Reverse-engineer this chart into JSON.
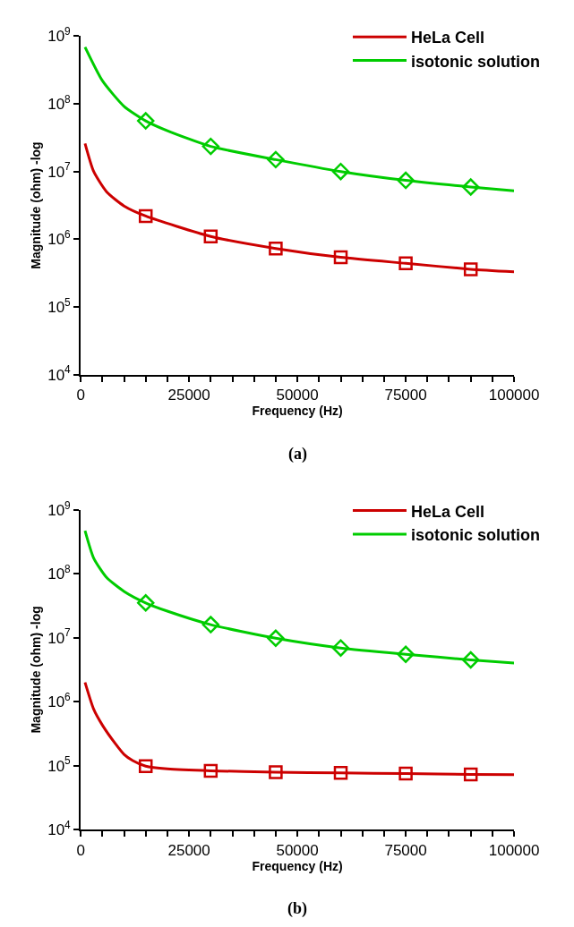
{
  "chart_data": [
    {
      "type": "line",
      "xlabel": "Frequency (Hz)",
      "ylabel": "Magnitude (ohm) -log",
      "annotations": [
        "(a)"
      ],
      "log": "y",
      "legend": "top right",
      "line_style": "solid",
      "xlim": [
        0,
        100000
      ],
      "xticks": [
        0,
        {
          "value": 5000,
          "label": null
        },
        {
          "value": 10000,
          "label": null
        },
        {
          "value": 15000,
          "label": null
        },
        {
          "value": 20000,
          "label": null
        },
        25000,
        {
          "value": 30000,
          "label": null
        },
        {
          "value": 35000,
          "label": null
        },
        {
          "value": 40000,
          "label": null
        },
        {
          "value": 45000,
          "label": null
        },
        50000,
        {
          "value": 55000,
          "label": null
        },
        {
          "value": 60000,
          "label": null
        },
        {
          "value": 65000,
          "label": null
        },
        {
          "value": 70000,
          "label": null
        },
        75000,
        {
          "value": 80000,
          "label": null
        },
        {
          "value": 85000,
          "label": null
        },
        {
          "value": 90000,
          "label": null
        },
        {
          "value": 95000,
          "label": null
        },
        100000
      ],
      "ylim": [
        10000,
        1000000000
      ],
      "yticks": [
        {
          "value": 10000,
          "label": "10$^{4}$"
        },
        {
          "value": 100000,
          "label": "10$^{5}$"
        },
        {
          "value": 1000000,
          "label": "10$^{6}$"
        },
        {
          "value": 10000000,
          "label": "10$^{7}$"
        },
        {
          "value": 100000000,
          "label": "10$^{8}$"
        },
        {
          "value": 1000000000,
          "label": "10$^{9}$"
        }
      ],
      "series": [
        {
          "name": "HeLa Cell",
          "color": "#cc0000",
          "marker": "none",
          "x": [
            1000,
            3000,
            6000,
            10000,
            15000,
            30000,
            45000,
            60000,
            75000,
            90000,
            100000
          ],
          "values": [
            26000000,
            10000000,
            5000000,
            3100000,
            2200000,
            1100000,
            730000,
            540000,
            440000,
            360000,
            330000
          ]
        },
        {
          "name": "isotonic solution",
          "color": "#00cc00",
          "marker": "none",
          "x": [
            1000,
            5000,
            10000,
            15000,
            20000,
            30000,
            45000,
            60000,
            75000,
            90000,
            100000
          ],
          "values": [
            690000000,
            220000000,
            92000000,
            56000000,
            40000000,
            23500000,
            15000000,
            10000000,
            7400000,
            5900000,
            5200000
          ]
        },
        {
          "color": "#cc0000",
          "type": "scatter",
          "marker": "square",
          "x": [
            15000,
            30000,
            45000,
            60000,
            75000,
            90000
          ],
          "values": [
            2200000,
            1100000,
            730000,
            540000,
            440000,
            360000
          ]
        },
        {
          "color": "#00cc00",
          "type": "scatter",
          "marker": "diamond",
          "x": [
            15000,
            30000,
            45000,
            60000,
            75000,
            90000
          ],
          "values": [
            56000000,
            23500000,
            15000000,
            10000000,
            7400000,
            5900000
          ]
        }
      ]
    },
    {
      "type": "line",
      "xlabel": "Frequency (Hz)",
      "ylabel": "Magnitude (ohm) -log",
      "annotations": [
        "(b)"
      ],
      "log": "y",
      "legend": "top right",
      "line_style": "solid",
      "xlim": [
        0,
        100000
      ],
      "xticks": [
        0,
        {
          "value": 5000,
          "label": null
        },
        {
          "value": 10000,
          "label": null
        },
        {
          "value": 15000,
          "label": null
        },
        {
          "value": 20000,
          "label": null
        },
        25000,
        {
          "value": 30000,
          "label": null
        },
        {
          "value": 35000,
          "label": null
        },
        {
          "value": 40000,
          "label": null
        },
        {
          "value": 45000,
          "label": null
        },
        50000,
        {
          "value": 55000,
          "label": null
        },
        {
          "value": 60000,
          "label": null
        },
        {
          "value": 65000,
          "label": null
        },
        {
          "value": 70000,
          "label": null
        },
        75000,
        {
          "value": 80000,
          "label": null
        },
        {
          "value": 85000,
          "label": null
        },
        {
          "value": 90000,
          "label": null
        },
        {
          "value": 95000,
          "label": null
        },
        100000
      ],
      "ylim": [
        10000,
        1000000000
      ],
      "yticks": [
        {
          "value": 10000,
          "label": "10$^{4}$"
        },
        {
          "value": 100000,
          "label": "10$^{5}$"
        },
        {
          "value": 1000000,
          "label": "10$^{6}$"
        },
        {
          "value": 10000000,
          "label": "10$^{7}$"
        },
        {
          "value": 100000000,
          "label": "10$^{8}$"
        },
        {
          "value": 1000000000,
          "label": "10$^{9}$"
        }
      ],
      "series": [
        {
          "name": "HeLa Cell",
          "color": "#cc0000",
          "marker": "none",
          "x": [
            1000,
            3000,
            5000,
            8000,
            10000,
            12000,
            15000,
            20000,
            30000,
            45000,
            60000,
            75000,
            90000,
            100000
          ],
          "values": [
            2000000,
            760000,
            430000,
            220000,
            150000,
            120000,
            98000,
            89000,
            83000,
            79000,
            77000,
            75000,
            73000,
            72000
          ]
        },
        {
          "name": "isotonic solution",
          "color": "#00cc00",
          "marker": "none",
          "x": [
            1000,
            3000,
            6000,
            10000,
            15000,
            20000,
            30000,
            45000,
            60000,
            75000,
            90000,
            100000
          ],
          "values": [
            470000000,
            175000000,
            87000000,
            53000000,
            35000000,
            26000000,
            16000000,
            9800000,
            6900000,
            5500000,
            4500000,
            4000000
          ]
        },
        {
          "color": "#cc0000",
          "type": "scatter",
          "marker": "square",
          "x": [
            15000,
            30000,
            45000,
            60000,
            75000,
            90000
          ],
          "values": [
            98000,
            83000,
            79000,
            77000,
            75000,
            73000
          ]
        },
        {
          "color": "#00cc00",
          "type": "scatter",
          "marker": "diamond",
          "x": [
            15000,
            30000,
            45000,
            60000,
            75000,
            90000
          ],
          "values": [
            35000000,
            16000000,
            9800000,
            6900000,
            5500000,
            4500000
          ]
        }
      ]
    }
  ]
}
